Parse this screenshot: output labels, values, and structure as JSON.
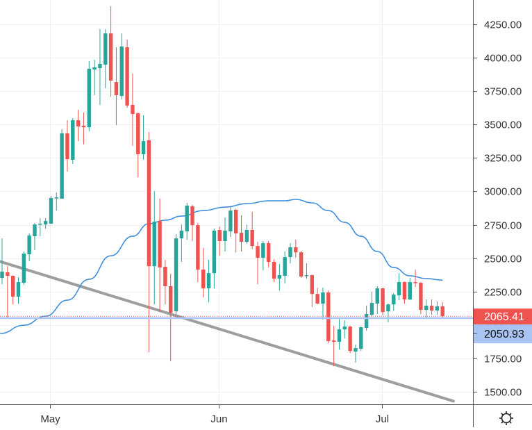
{
  "chart_data": {
    "type": "candlestick",
    "title": "",
    "xlabel": "",
    "ylabel": "",
    "ylim": [
      1420,
      4390
    ],
    "grid": true,
    "colors": {
      "up": "#26a69a",
      "down": "#ef5350",
      "moving_average": "#3f8fdd",
      "trendline": "#9e9e9e",
      "last_price": "#ef5350",
      "price_level": "#a9c4f2"
    },
    "y_ticks": [
      "1500.00",
      "1750.00",
      "2000.00",
      "2250.00",
      "2500.00",
      "2750.00",
      "3000.00",
      "3250.00",
      "3500.00",
      "3750.00",
      "4000.00",
      "4250.00"
    ],
    "x_ticks": [
      {
        "label": "May",
        "date": "May 1"
      },
      {
        "label": "Jun",
        "date": "Jun 1"
      },
      {
        "label": "Jul",
        "date": "Jul 1"
      }
    ],
    "last_price": {
      "label": "2065.41",
      "value": 2065.41
    },
    "price_level": {
      "label": "2050.93",
      "value": 2050.93
    },
    "candles": [
      {
        "d": "Apr 22",
        "o": 2352,
        "h": 2648,
        "l": 2305,
        "c": 2399
      },
      {
        "d": "Apr 23",
        "o": 2394,
        "h": 2440,
        "l": 2045,
        "c": 2368
      },
      {
        "d": "Apr 24",
        "o": 2368,
        "h": 2372,
        "l": 2154,
        "c": 2212
      },
      {
        "d": "Apr 25",
        "o": 2212,
        "h": 2357,
        "l": 2160,
        "c": 2321
      },
      {
        "d": "Apr 26",
        "o": 2316,
        "h": 2550,
        "l": 2300,
        "c": 2534
      },
      {
        "d": "Apr 27",
        "o": 2529,
        "h": 2685,
        "l": 2477,
        "c": 2669
      },
      {
        "d": "Apr 28",
        "o": 2664,
        "h": 2763,
        "l": 2560,
        "c": 2752
      },
      {
        "d": "Apr 29",
        "o": 2752,
        "h": 2799,
        "l": 2664,
        "c": 2758
      },
      {
        "d": "Apr 30",
        "o": 2752,
        "h": 2799,
        "l": 2721,
        "c": 2778
      },
      {
        "d": "May 1",
        "o": 2758,
        "h": 2966,
        "l": 2758,
        "c": 2950
      },
      {
        "d": "May 2",
        "o": 2950,
        "h": 2992,
        "l": 2856,
        "c": 2955
      },
      {
        "d": "May 3",
        "o": 2945,
        "h": 3465,
        "l": 2945,
        "c": 3434
      },
      {
        "d": "May 4",
        "o": 3434,
        "h": 3532,
        "l": 3148,
        "c": 3241
      },
      {
        "d": "May 5",
        "o": 3236,
        "h": 3548,
        "l": 3205,
        "c": 3532
      },
      {
        "d": "May 6",
        "o": 3532,
        "h": 3610,
        "l": 3376,
        "c": 3486
      },
      {
        "d": "May 7",
        "o": 3491,
        "h": 3590,
        "l": 3350,
        "c": 3480
      },
      {
        "d": "May 8",
        "o": 3480,
        "h": 3974,
        "l": 3449,
        "c": 3917
      },
      {
        "d": "May 9",
        "o": 3912,
        "h": 3985,
        "l": 3720,
        "c": 3928
      },
      {
        "d": "May 10",
        "o": 3922,
        "h": 4214,
        "l": 3647,
        "c": 3954
      },
      {
        "d": "May 11",
        "o": 3948,
        "h": 4214,
        "l": 3772,
        "c": 4182
      },
      {
        "d": "May 12",
        "o": 4182,
        "h": 4385,
        "l": 3709,
        "c": 3829
      },
      {
        "d": "May 13",
        "o": 3818,
        "h": 4078,
        "l": 3496,
        "c": 3720
      },
      {
        "d": "May 14",
        "o": 3714,
        "h": 4182,
        "l": 3688,
        "c": 4084
      },
      {
        "d": "May 15",
        "o": 4078,
        "h": 4136,
        "l": 3626,
        "c": 3642
      },
      {
        "d": "May 16",
        "o": 3647,
        "h": 3881,
        "l": 3340,
        "c": 3579
      },
      {
        "d": "May 17",
        "o": 3584,
        "h": 3590,
        "l": 3106,
        "c": 3278
      },
      {
        "d": "May 18",
        "o": 3278,
        "h": 3569,
        "l": 3236,
        "c": 3376
      },
      {
        "d": "May 19",
        "o": 3382,
        "h": 3444,
        "l": 1796,
        "c": 2440
      },
      {
        "d": "May 20",
        "o": 2440,
        "h": 3002,
        "l": 2154,
        "c": 2773
      },
      {
        "d": "May 21",
        "o": 2778,
        "h": 2945,
        "l": 2102,
        "c": 2430
      },
      {
        "d": "May 22",
        "o": 2435,
        "h": 2487,
        "l": 2154,
        "c": 2290
      },
      {
        "d": "May 23",
        "o": 2290,
        "h": 2383,
        "l": 1728,
        "c": 2092
      },
      {
        "d": "May 24",
        "o": 2102,
        "h": 2680,
        "l": 2076,
        "c": 2648
      },
      {
        "d": "May 25",
        "o": 2648,
        "h": 2752,
        "l": 2472,
        "c": 2706
      },
      {
        "d": "May 26",
        "o": 2700,
        "h": 2914,
        "l": 2638,
        "c": 2893
      },
      {
        "d": "May 27",
        "o": 2888,
        "h": 2898,
        "l": 2628,
        "c": 2747
      },
      {
        "d": "May 28",
        "o": 2747,
        "h": 2763,
        "l": 2321,
        "c": 2414
      },
      {
        "d": "May 29",
        "o": 2414,
        "h": 2576,
        "l": 2206,
        "c": 2274
      },
      {
        "d": "May 30",
        "o": 2274,
        "h": 2487,
        "l": 2170,
        "c": 2388
      },
      {
        "d": "May 31",
        "o": 2388,
        "h": 2721,
        "l": 2274,
        "c": 2706
      },
      {
        "d": "Jun 1",
        "o": 2711,
        "h": 2737,
        "l": 2518,
        "c": 2628
      },
      {
        "d": "Jun 2",
        "o": 2628,
        "h": 2804,
        "l": 2550,
        "c": 2706
      },
      {
        "d": "Jun 3",
        "o": 2700,
        "h": 2888,
        "l": 2659,
        "c": 2856
      },
      {
        "d": "Jun 4",
        "o": 2862,
        "h": 2870,
        "l": 2544,
        "c": 2685
      },
      {
        "d": "Jun 5",
        "o": 2690,
        "h": 2820,
        "l": 2550,
        "c": 2622
      },
      {
        "d": "Jun 6",
        "o": 2622,
        "h": 2752,
        "l": 2607,
        "c": 2711
      },
      {
        "d": "Jun 7",
        "o": 2711,
        "h": 2846,
        "l": 2570,
        "c": 2591
      },
      {
        "d": "Jun 8",
        "o": 2591,
        "h": 2622,
        "l": 2305,
        "c": 2503
      },
      {
        "d": "Jun 9",
        "o": 2503,
        "h": 2628,
        "l": 2409,
        "c": 2612
      },
      {
        "d": "Jun 10",
        "o": 2612,
        "h": 2628,
        "l": 2430,
        "c": 2472
      },
      {
        "d": "Jun 11",
        "o": 2472,
        "h": 2492,
        "l": 2321,
        "c": 2347
      },
      {
        "d": "Jun 12",
        "o": 2347,
        "h": 2456,
        "l": 2258,
        "c": 2373
      },
      {
        "d": "Jun 13",
        "o": 2368,
        "h": 2550,
        "l": 2310,
        "c": 2508
      },
      {
        "d": "Jun 14",
        "o": 2508,
        "h": 2612,
        "l": 2461,
        "c": 2581
      },
      {
        "d": "Jun 15",
        "o": 2581,
        "h": 2638,
        "l": 2503,
        "c": 2544
      },
      {
        "d": "Jun 16",
        "o": 2544,
        "h": 2555,
        "l": 2352,
        "c": 2362
      },
      {
        "d": "Jun 17",
        "o": 2368,
        "h": 2461,
        "l": 2347,
        "c": 2373
      },
      {
        "d": "Jun 18",
        "o": 2373,
        "h": 2378,
        "l": 2134,
        "c": 2232
      },
      {
        "d": "Jun 19",
        "o": 2232,
        "h": 2279,
        "l": 2155,
        "c": 2160
      },
      {
        "d": "Jun 20",
        "o": 2160,
        "h": 2279,
        "l": 2040,
        "c": 2243
      },
      {
        "d": "Jun 21",
        "o": 2243,
        "h": 2258,
        "l": 1863,
        "c": 1879
      },
      {
        "d": "Jun 22",
        "o": 1884,
        "h": 1993,
        "l": 1692,
        "c": 1874
      },
      {
        "d": "Jun 23",
        "o": 1874,
        "h": 2045,
        "l": 1816,
        "c": 1967
      },
      {
        "d": "Jun 24",
        "o": 1967,
        "h": 2035,
        "l": 1900,
        "c": 1988
      },
      {
        "d": "Jun 25",
        "o": 1988,
        "h": 1993,
        "l": 1790,
        "c": 1806
      },
      {
        "d": "Jun 26",
        "o": 1801,
        "h": 1853,
        "l": 1718,
        "c": 1827
      },
      {
        "d": "Jun 27",
        "o": 1822,
        "h": 1988,
        "l": 1806,
        "c": 1983
      },
      {
        "d": "Jun 28",
        "o": 1978,
        "h": 2144,
        "l": 1957,
        "c": 2082
      },
      {
        "d": "Jun 29",
        "o": 2076,
        "h": 2248,
        "l": 2066,
        "c": 2165
      },
      {
        "d": "Jun 30",
        "o": 2160,
        "h": 2290,
        "l": 2082,
        "c": 2274
      },
      {
        "d": "Jul 1",
        "o": 2274,
        "h": 2279,
        "l": 2071,
        "c": 2097
      },
      {
        "d": "Jul 2",
        "o": 2102,
        "h": 2160,
        "l": 2019,
        "c": 2154
      },
      {
        "d": "Jul 3",
        "o": 2154,
        "h": 2238,
        "l": 2108,
        "c": 2227
      },
      {
        "d": "Jul 4",
        "o": 2222,
        "h": 2388,
        "l": 2186,
        "c": 2321
      },
      {
        "d": "Jul 5",
        "o": 2321,
        "h": 2326,
        "l": 2160,
        "c": 2191
      },
      {
        "d": "Jul 6",
        "o": 2191,
        "h": 2352,
        "l": 2186,
        "c": 2321
      },
      {
        "d": "Jul 7",
        "o": 2321,
        "h": 2414,
        "l": 2284,
        "c": 2316
      },
      {
        "d": "Jul 8",
        "o": 2316,
        "h": 2321,
        "l": 2082,
        "c": 2113
      },
      {
        "d": "Jul 9",
        "o": 2113,
        "h": 2191,
        "l": 2050,
        "c": 2144
      },
      {
        "d": "Jul 10",
        "o": 2144,
        "h": 2191,
        "l": 2076,
        "c": 2108
      },
      {
        "d": "Jul 11",
        "o": 2108,
        "h": 2175,
        "l": 2076,
        "c": 2139
      },
      {
        "d": "Jul 12",
        "o": 2139,
        "h": 2170,
        "l": 2056,
        "c": 2065.41
      }
    ],
    "moving_average": [
      {
        "d": "Apr 22",
        "v": 1936
      },
      {
        "d": "Apr 26",
        "v": 1998
      },
      {
        "d": "Apr 30",
        "v": 2066
      },
      {
        "d": "May 4",
        "v": 2186
      },
      {
        "d": "May 8",
        "v": 2342
      },
      {
        "d": "May 12",
        "v": 2518
      },
      {
        "d": "May 16",
        "v": 2664
      },
      {
        "d": "May 19",
        "v": 2758
      },
      {
        "d": "May 22",
        "v": 2784
      },
      {
        "d": "May 25",
        "v": 2815
      },
      {
        "d": "May 29",
        "v": 2856
      },
      {
        "d": "Jun 2",
        "v": 2882
      },
      {
        "d": "Jun 6",
        "v": 2908
      },
      {
        "d": "Jun 10",
        "v": 2929
      },
      {
        "d": "Jun 13",
        "v": 2929
      },
      {
        "d": "Jun 15",
        "v": 2940
      },
      {
        "d": "Jun 18",
        "v": 2914
      },
      {
        "d": "Jun 21",
        "v": 2856
      },
      {
        "d": "Jun 24",
        "v": 2768
      },
      {
        "d": "Jun 27",
        "v": 2664
      },
      {
        "d": "Jun 30",
        "v": 2550
      },
      {
        "d": "Jul 3",
        "v": 2430
      },
      {
        "d": "Jul 6",
        "v": 2368
      },
      {
        "d": "Jul 9",
        "v": 2347
      },
      {
        "d": "Jul 12",
        "v": 2336
      }
    ],
    "trendline": [
      {
        "d": "Apr 22",
        "v": 2475
      },
      {
        "d": "Jul 14",
        "v": 1430
      }
    ]
  },
  "ui": {
    "settings_icon": "gear-icon"
  }
}
